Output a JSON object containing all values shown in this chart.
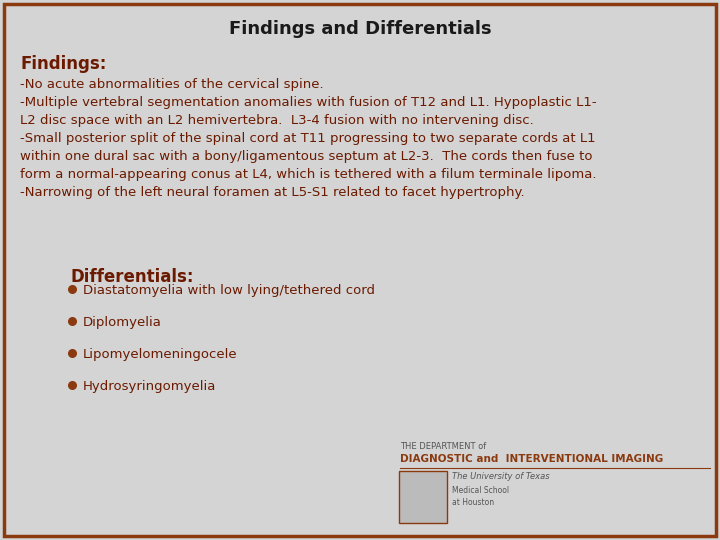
{
  "title": "Findings and Differentials",
  "title_fontsize": 13,
  "title_color": "#1a1a1a",
  "background_color": "#d4d4d4",
  "border_color": "#8B3A0F",
  "findings_label": "Findings:",
  "findings_label_color": "#6B1A00",
  "findings_label_fontsize": 12,
  "findings_text": "-No acute abnormalities of the cervical spine.\n-Multiple vertebral segmentation anomalies with fusion of T12 and L1. Hypoplastic L1-\nL2 disc space with an L2 hemivertebra.  L3-4 fusion with no intervening disc.\n-Small posterior split of the spinal cord at T11 progressing to two separate cords at L1\nwithin one dural sac with a bony/ligamentous septum at L2-3.  The cords then fuse to\nform a normal-appearing conus at L4, which is tethered with a filum terminale lipoma.\n-Narrowing of the left neural foramen at L5-S1 related to facet hypertrophy.",
  "findings_text_color": "#6B1A00",
  "findings_text_fontsize": 9.5,
  "differentials_label": "Differentials:",
  "differentials_label_color": "#6B1A00",
  "differentials_label_fontsize": 12,
  "bullet_color": "#8B3A0F",
  "bullet_items": [
    "Diastatomyelia with low lying/tethered cord",
    "Diplomyelia",
    "Lipomyelomeningocele",
    "Hydrosyringomyelia"
  ],
  "bullet_text_color": "#6B1A00",
  "bullet_fontsize": 9.5,
  "logo_line1": "THE DEPARTMENT of",
  "logo_line2": "DIAGNOSTIC and  INTERVENTIONAL IMAGING",
  "logo_line3": "The University of Texas",
  "logo_line4": "Medical School",
  "logo_line5": "at Houston"
}
